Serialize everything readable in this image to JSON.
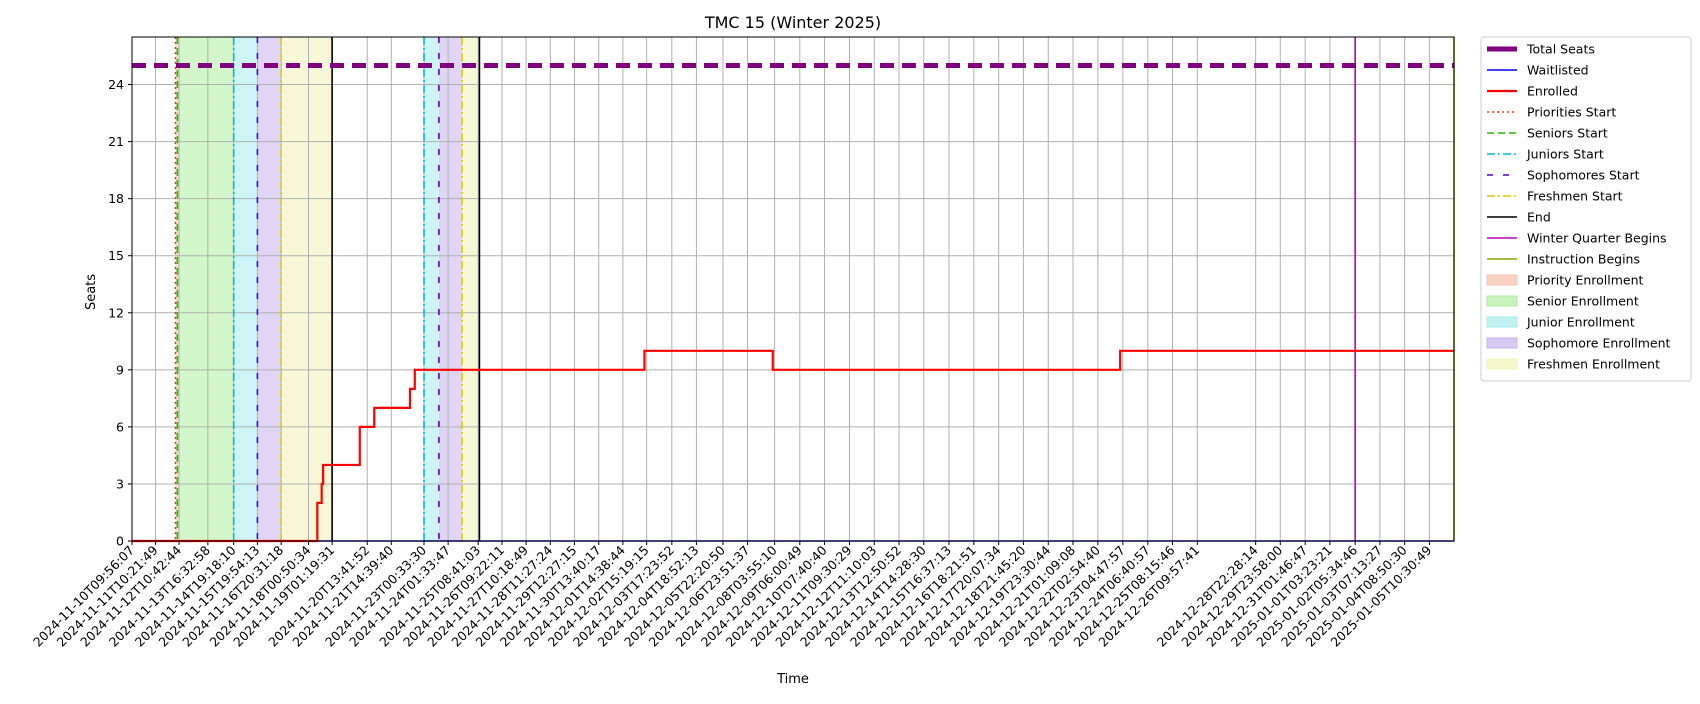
{
  "chart_data": {
    "type": "line",
    "title": "TMC 15 (Winter 2025)",
    "xlabel": "Time",
    "ylabel": "Seats",
    "xlim": [
      "2024-11-10T09:56:07",
      "2025-01-06T12:00:00"
    ],
    "ylim": [
      0,
      26.5
    ],
    "yticks": [
      0,
      3,
      6,
      9,
      12,
      15,
      18,
      21,
      24
    ],
    "grid": true,
    "legend_position": "outside right",
    "x_tick_labels": [
      "2024-11-10T09:56:07",
      "2024-11-11T10:21:49",
      "2024-11-12T10:42:44",
      "2024-11-13T16:32:58",
      "2024-11-14T19:18:10",
      "2024-11-15T19:54:13",
      "2024-11-16T20:31:18",
      "2024-11-18T00:50:34",
      "2024-11-19T01:19:31",
      "2024-11-20T13:41:52",
      "2024-11-21T14:39:40",
      "2024-11-23T00:33:30",
      "2024-11-24T01:33:47",
      "2024-11-25T08:41:03",
      "2024-11-26T09:22:11",
      "2024-11-27T10:18:49",
      "2024-11-28T11:27:24",
      "2024-11-29T12:27:15",
      "2024-11-30T13:40:17",
      "2024-12-01T14:38:44",
      "2024-12-02T15:19:15",
      "2024-12-03T17:23:52",
      "2024-12-04T18:52:13",
      "2024-12-05T22:20:50",
      "2024-12-06T23:51:37",
      "2024-12-08T03:55:10",
      "2024-12-09T06:00:49",
      "2024-12-10T07:40:40",
      "2024-12-11T09:30:29",
      "2024-12-12T11:10:03",
      "2024-12-13T12:50:52",
      "2024-12-14T14:28:30",
      "2024-12-15T16:37:13",
      "2024-12-16T18:21:51",
      "2024-12-17T20:07:34",
      "2024-12-18T21:45:20",
      "2024-12-19T23:30:44",
      "2024-12-21T01:09:08",
      "2024-12-22T02:54:40",
      "2024-12-23T04:47:57",
      "2024-12-24T06:40:57",
      "2024-12-25T08:15:46",
      "2024-12-26T09:57:41",
      "2024-12-28T22:28:14",
      "2024-12-29T23:58:00",
      "2024-12-31T01:46:47",
      "2025-01-01T03:23:21",
      "2025-01-02T05:34:46",
      "2025-01-03T07:13:27",
      "2025-01-04T08:50:30",
      "2025-01-05T10:30:49"
    ],
    "series": [
      {
        "name": "Total Seats",
        "color": "#800080",
        "style": "dashed-thick",
        "x": [
          "2024-11-10T09:56:07",
          "2025-01-06T12:00:00"
        ],
        "y": [
          25,
          25
        ]
      },
      {
        "name": "Waitlisted",
        "color": "#0000ff",
        "style": "solid",
        "x": [
          "2024-11-10T09:56:07",
          "2025-01-06T12:00:00"
        ],
        "y": [
          0,
          0
        ]
      },
      {
        "name": "Enrolled",
        "color": "#ff0000",
        "style": "step",
        "x": [
          "2024-11-10T09:56:07",
          "2024-11-18T10:00:00",
          "2024-11-18T12:30:00",
          "2024-11-18T14:30:00",
          "2024-11-18T16:00:00",
          "2024-11-20T02:00:00",
          "2024-11-20T06:00:00",
          "2024-11-20T18:00:00",
          "2024-11-20T21:00:00",
          "2024-11-21T12:00:00",
          "2024-11-22T10:00:00",
          "2024-11-22T13:00:00",
          "2024-11-22T15:00:00",
          "2024-12-02T12:00:00",
          "2024-12-02T13:00:00",
          "2024-12-08T00:00:00",
          "2024-12-08T02:00:00",
          "2024-12-23T00:00:00",
          "2024-12-23T02:00:00",
          "2025-01-06T12:00:00"
        ],
        "y": [
          0,
          2,
          2,
          3,
          4,
          4,
          6,
          6,
          7,
          7,
          8,
          8,
          9,
          9,
          10,
          10,
          9,
          9,
          10,
          10
        ]
      }
    ],
    "vertical_markers": [
      {
        "name": "Priorities Start",
        "color": "#ff3300",
        "style": "dotted",
        "x": [
          "2024-11-12T07:00:00"
        ]
      },
      {
        "name": "Seniors Start",
        "color": "#22bb00",
        "style": "dashed",
        "x": [
          "2024-11-12T09:00:00"
        ]
      },
      {
        "name": "Juniors Start",
        "color": "#00bbcc",
        "style": "dashdot",
        "x": [
          "2024-11-14T19:18:10",
          "2024-11-23T00:33:30"
        ]
      },
      {
        "name": "Sophomores Start",
        "color": "#5500cc",
        "style": "loosedash",
        "x": [
          "2024-11-15T19:54:13",
          "2024-11-23T16:00:00"
        ]
      },
      {
        "name": "Freshmen Start",
        "color": "#ddcc00",
        "style": "dashdot",
        "x": [
          "2024-11-16T20:31:18",
          "2024-11-24T16:00:00"
        ]
      },
      {
        "name": "End",
        "color": "#000000",
        "style": "solid",
        "x": [
          "2024-11-19T01:19:31",
          "2024-11-25T10:00:00"
        ]
      },
      {
        "name": "Winter Quarter Begins",
        "color": "#bb00bb",
        "style": "solid",
        "x": [
          "2025-01-02T05:34:46"
        ]
      },
      {
        "name": "Instruction Begins",
        "color": "#88aa00",
        "style": "solid",
        "x": [
          "2025-01-06T12:00:00"
        ]
      }
    ],
    "shaded_periods": [
      {
        "name": "Priority Enrollment",
        "color": "#f4c2a8",
        "x0": "2024-11-12T07:00:00",
        "x1": "2024-11-12T09:00:00"
      },
      {
        "name": "Senior Enrollment",
        "color": "#b0eea0",
        "x0": "2024-11-12T09:00:00",
        "x1": "2024-11-14T19:18:10"
      },
      {
        "name": "Junior Enrollment",
        "color": "#a6ecee",
        "x0": "2024-11-14T19:18:10",
        "x1": "2024-11-15T19:54:13"
      },
      {
        "name": "Sophomore Enrollment",
        "color": "#c8b2ee",
        "x0": "2024-11-15T19:54:13",
        "x1": "2024-11-16T20:31:18"
      },
      {
        "name": "Freshmen Enrollment",
        "color": "#f2f2b8",
        "x0": "2024-11-16T20:31:18",
        "x1": "2024-11-19T01:19:31"
      },
      {
        "name": "Junior Enrollment",
        "color": "#a6ecee",
        "x0": "2024-11-23T00:33:30",
        "x1": "2024-11-23T16:00:00"
      },
      {
        "name": "Sophomore Enrollment",
        "color": "#c8b2ee",
        "x0": "2024-11-23T16:00:00",
        "x1": "2024-11-24T16:00:00"
      },
      {
        "name": "Freshmen Enrollment",
        "color": "#f2f2b8",
        "x0": "2024-11-24T16:00:00",
        "x1": "2024-11-25T10:00:00"
      }
    ],
    "legend": [
      {
        "label": "Total Seats",
        "kind": "line",
        "color": "#800080",
        "style": "thick"
      },
      {
        "label": "Waitlisted",
        "kind": "line",
        "color": "#0000ff",
        "style": "solid"
      },
      {
        "label": "Enrolled",
        "kind": "line",
        "color": "#ff0000",
        "style": "solid-bold"
      },
      {
        "label": "Priorities Start",
        "kind": "line",
        "color": "#ff3300",
        "style": "dotted"
      },
      {
        "label": "Seniors Start",
        "kind": "line",
        "color": "#22bb00",
        "style": "dashed"
      },
      {
        "label": "Juniors Start",
        "kind": "line",
        "color": "#00bbcc",
        "style": "dashdot"
      },
      {
        "label": "Sophomores Start",
        "kind": "line",
        "color": "#5500cc",
        "style": "loosedash"
      },
      {
        "label": "Freshmen Start",
        "kind": "line",
        "color": "#ddcc00",
        "style": "dashdot"
      },
      {
        "label": "End",
        "kind": "line",
        "color": "#000000",
        "style": "solid"
      },
      {
        "label": "Winter Quarter Begins",
        "kind": "line",
        "color": "#bb00bb",
        "style": "solid"
      },
      {
        "label": "Instruction Begins",
        "kind": "line",
        "color": "#88aa00",
        "style": "solid"
      },
      {
        "label": "Priority Enrollment",
        "kind": "patch",
        "color": "#f4c2a8"
      },
      {
        "label": "Senior Enrollment",
        "kind": "patch",
        "color": "#b0eea0"
      },
      {
        "label": "Junior Enrollment",
        "kind": "patch",
        "color": "#a6ecee"
      },
      {
        "label": "Sophomore Enrollment",
        "kind": "patch",
        "color": "#c8b2ee"
      },
      {
        "label": "Freshmen Enrollment",
        "kind": "patch",
        "color": "#f2f2b8"
      }
    ]
  }
}
